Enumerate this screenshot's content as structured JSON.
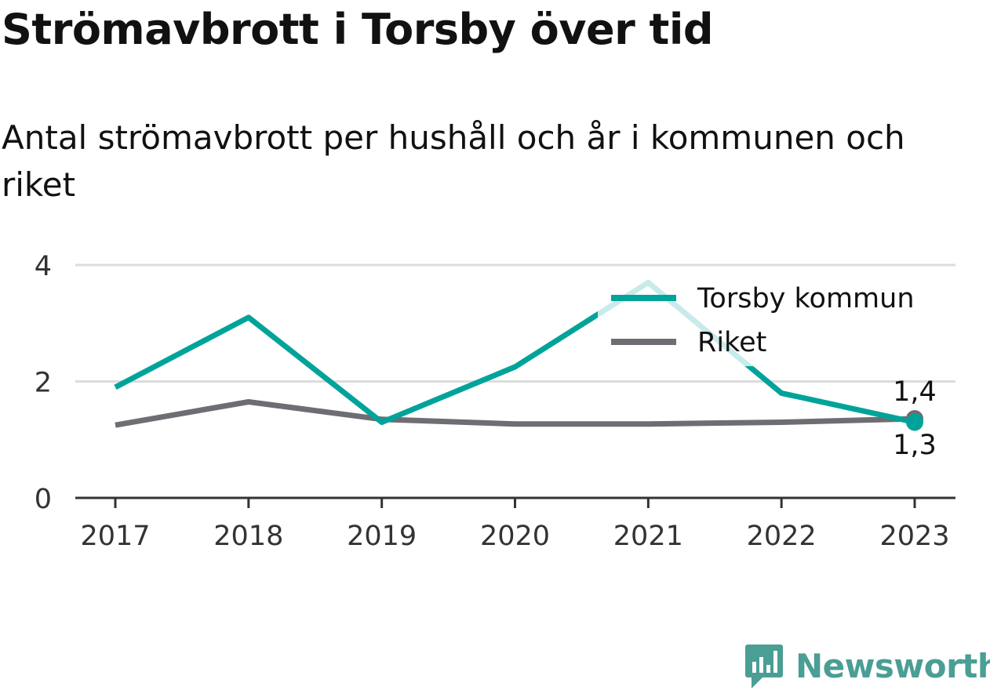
{
  "header": {
    "title": "Strömavbrott i Torsby över tid",
    "subtitle": "Antal strömavbrott per hushåll och år i kommunen och riket"
  },
  "brand": {
    "name": "Newsworthy",
    "color": "#4a9e94"
  },
  "chart_data": {
    "type": "line",
    "x": [
      "2017",
      "2018",
      "2019",
      "2020",
      "2021",
      "2022",
      "2023"
    ],
    "ylim": [
      0,
      4
    ],
    "yticks": [
      "0",
      "2",
      "4"
    ],
    "grid": true,
    "legend_position": "top-right",
    "series": [
      {
        "name": "Torsby kommun",
        "color": "#00a39a",
        "values": [
          1.9,
          3.1,
          1.3,
          2.25,
          3.7,
          1.8,
          1.3
        ],
        "end_label": "1,3"
      },
      {
        "name": "Riket",
        "color": "#6f6d73",
        "values": [
          1.25,
          1.65,
          1.35,
          1.27,
          1.27,
          1.3,
          1.36
        ],
        "end_label": "1,4"
      }
    ]
  }
}
